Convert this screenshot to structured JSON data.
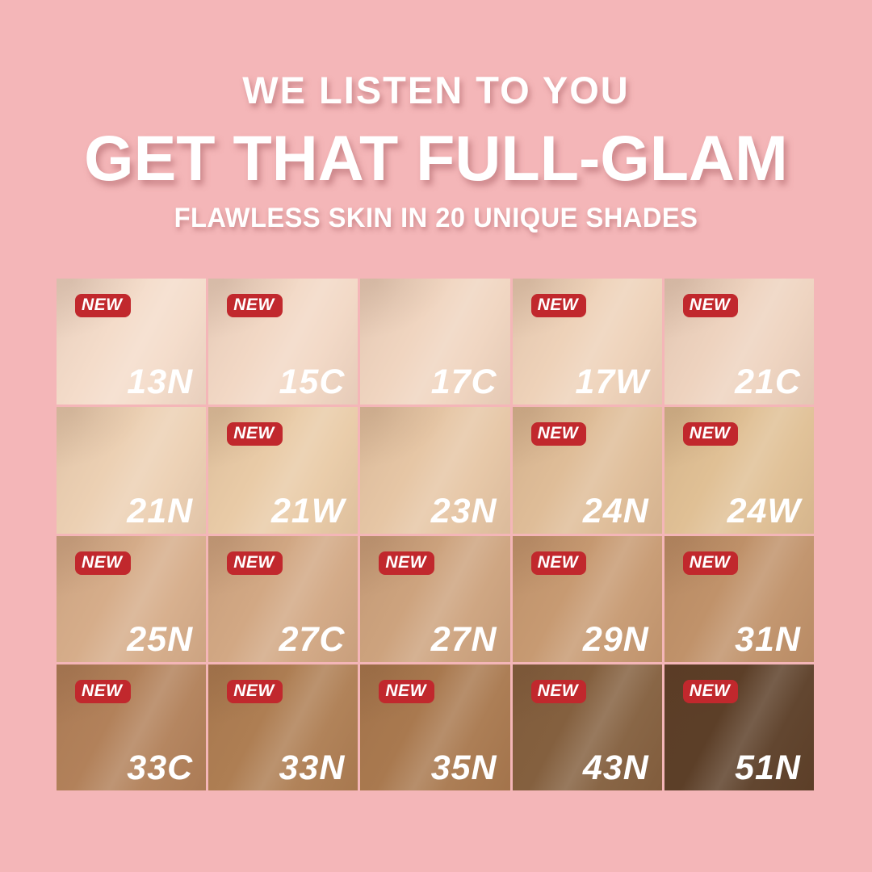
{
  "page": {
    "background_color": "#f4b6b8",
    "accent_red": "#c1282d",
    "heading_text_color": "#ffffff",
    "shade_label_color": "#ffffff"
  },
  "header": {
    "line1": "WE LISTEN TO YOU",
    "line2": "GET THAT FULL-GLAM",
    "line3": "FLAWLESS SKIN IN 20 UNIQUE SHADES"
  },
  "grid": {
    "badge_label": "NEW",
    "columns": 5,
    "rows": 4,
    "shades": [
      {
        "label": "13N",
        "new": true,
        "color": "#f4dcca"
      },
      {
        "label": "15C",
        "new": true,
        "color": "#f2d8c5"
      },
      {
        "label": "17C",
        "new": false,
        "color": "#f0d5c0"
      },
      {
        "label": "17W",
        "new": true,
        "color": "#eed2b9"
      },
      {
        "label": "21C",
        "new": true,
        "color": "#eed3bf"
      },
      {
        "label": "21N",
        "new": false,
        "color": "#ecd0b3"
      },
      {
        "label": "21W",
        "new": true,
        "color": "#e9cba7"
      },
      {
        "label": "23N",
        "new": false,
        "color": "#e6c6a5"
      },
      {
        "label": "24N",
        "new": true,
        "color": "#dfbd98"
      },
      {
        "label": "24W",
        "new": true,
        "color": "#e0c095"
      },
      {
        "label": "25N",
        "new": true,
        "color": "#d6ad8a"
      },
      {
        "label": "27C",
        "new": true,
        "color": "#d2a884"
      },
      {
        "label": "27N",
        "new": true,
        "color": "#cda37e"
      },
      {
        "label": "29N",
        "new": true,
        "color": "#c79a72"
      },
      {
        "label": "31N",
        "new": true,
        "color": "#c0926a"
      },
      {
        "label": "33C",
        "new": true,
        "color": "#b2815a"
      },
      {
        "label": "33N",
        "new": true,
        "color": "#ae7e53"
      },
      {
        "label": "35N",
        "new": true,
        "color": "#a9794f"
      },
      {
        "label": "43N",
        "new": true,
        "color": "#84603f"
      },
      {
        "label": "51N",
        "new": true,
        "color": "#5c3f28"
      }
    ]
  }
}
